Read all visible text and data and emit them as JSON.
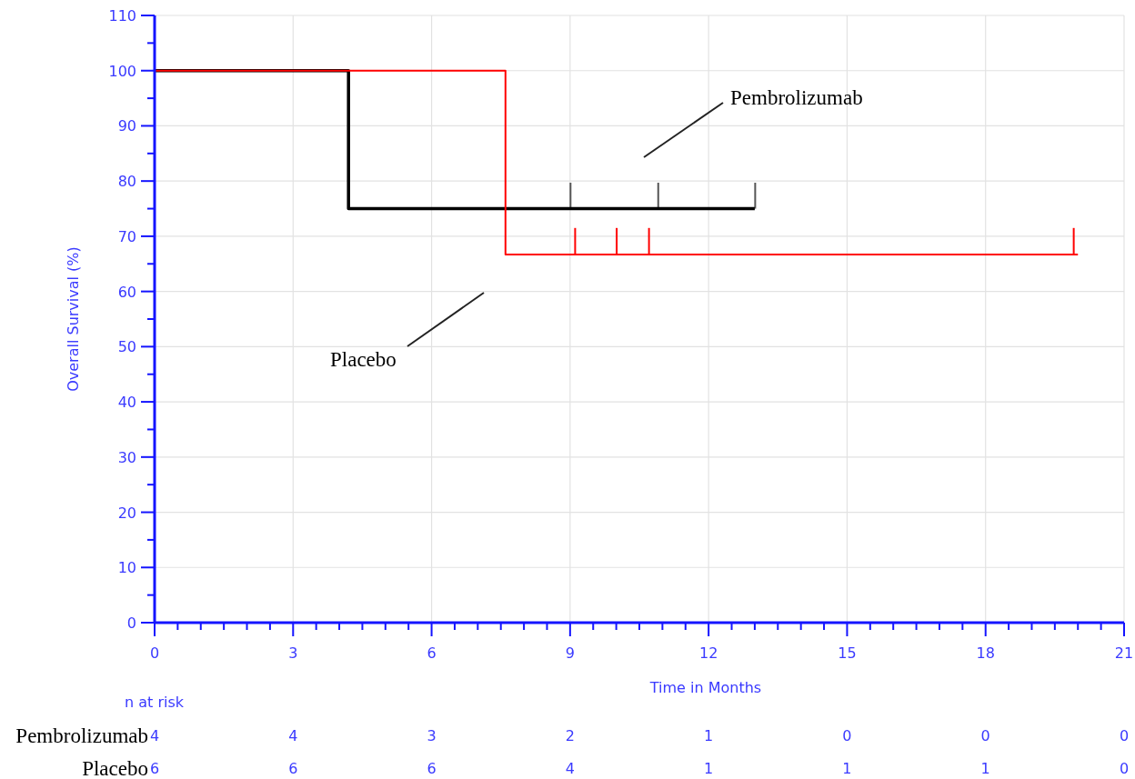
{
  "chart_data": [
    {
      "type": "step",
      "xlabel": "Time in Months",
      "ylabel": "Overall Survival (%)",
      "annotations": [
        "Pembrolizumab",
        "Placebo"
      ],
      "series": [
        {
          "type": "step",
          "color": "#000000",
          "x": [
            0,
            4.2,
            13
          ],
          "values": [
            100,
            75,
            75
          ]
        },
        {
          "type": "bar",
          "color": "#555555",
          "x": [
            9.0,
            10.9,
            13.0
          ],
          "base": [
            75,
            75,
            75
          ],
          "values": [
            4.7,
            4.7,
            4.7
          ]
        },
        {
          "type": "step",
          "color": "#ff0000",
          "x": [
            0,
            7.6,
            20.0
          ],
          "values": [
            100,
            66.7,
            66.7
          ]
        },
        {
          "type": "bar",
          "color": "#ff0000",
          "x": [
            9.1,
            10.0,
            10.7,
            19.9
          ],
          "base": [
            66.7,
            66.7,
            66.7,
            66.7
          ],
          "values": [
            4.8,
            4.8,
            4.8,
            4.8
          ]
        }
      ],
      "xlim": [
        0,
        21
      ],
      "xticks": [
        0,
        {
          "value": 0.5,
          "label": null
        },
        {
          "value": 1,
          "label": null
        },
        {
          "value": 1.5,
          "label": null
        },
        {
          "value": 2,
          "label": null
        },
        {
          "value": 2.5,
          "label": null
        },
        3,
        {
          "value": 3.5,
          "label": null
        },
        {
          "value": 4,
          "label": null
        },
        {
          "value": 4.5,
          "label": null
        },
        {
          "value": 5,
          "label": null
        },
        {
          "value": 5.5,
          "label": null
        },
        6,
        {
          "value": 6.5,
          "label": null
        },
        {
          "value": 7,
          "label": null
        },
        {
          "value": 7.5,
          "label": null
        },
        {
          "value": 8,
          "label": null
        },
        {
          "value": 8.5,
          "label": null
        },
        9,
        {
          "value": 9.5,
          "label": null
        },
        {
          "value": 10,
          "label": null
        },
        {
          "value": 10.5,
          "label": null
        },
        {
          "value": 11,
          "label": null
        },
        {
          "value": 11.5,
          "label": null
        },
        12,
        {
          "value": 12.5,
          "label": null
        },
        {
          "value": 13,
          "label": null
        },
        {
          "value": 13.5,
          "label": null
        },
        {
          "value": 14,
          "label": null
        },
        {
          "value": 14.5,
          "label": null
        },
        15,
        {
          "value": 15.5,
          "label": null
        },
        {
          "value": 16,
          "label": null
        },
        {
          "value": 16.5,
          "label": null
        },
        {
          "value": 17,
          "label": null
        },
        {
          "value": 17.5,
          "label": null
        },
        18,
        {
          "value": 18.5,
          "label": null
        },
        {
          "value": 19,
          "label": null
        },
        {
          "value": 19.5,
          "label": null
        },
        {
          "value": 20,
          "label": null
        },
        {
          "value": 20.5,
          "label": null
        },
        21
      ],
      "ylim": [
        0,
        110
      ],
      "yticks": [
        0,
        {
          "value": 5,
          "label": null
        },
        10,
        {
          "value": 15,
          "label": null
        },
        20,
        {
          "value": 25,
          "label": null
        },
        30,
        {
          "value": 35,
          "label": null
        },
        40,
        {
          "value": 45,
          "label": null
        },
        50,
        {
          "value": 55,
          "label": null
        },
        60,
        {
          "value": 65,
          "label": null
        },
        70,
        {
          "value": 75,
          "label": null
        },
        80,
        {
          "value": 85,
          "label": null
        },
        90,
        {
          "value": 95,
          "label": null
        },
        100,
        {
          "value": 105,
          "label": null
        },
        110
      ],
      "grid": true
    },
    {
      "type": "heatmap",
      "title": "n at risk",
      "categories": [
        "0",
        "3",
        "6",
        "9",
        "12",
        "15",
        "18",
        "21"
      ],
      "y_categories": [
        "Pembrolizumab",
        "Placebo"
      ],
      "cells": [
        [
          4,
          4,
          3,
          2,
          1,
          0,
          0,
          0
        ],
        [
          6,
          6,
          6,
          4,
          1,
          1,
          1,
          0
        ]
      ],
      "data_labels": true,
      "tick_labels": "y"
    }
  ]
}
